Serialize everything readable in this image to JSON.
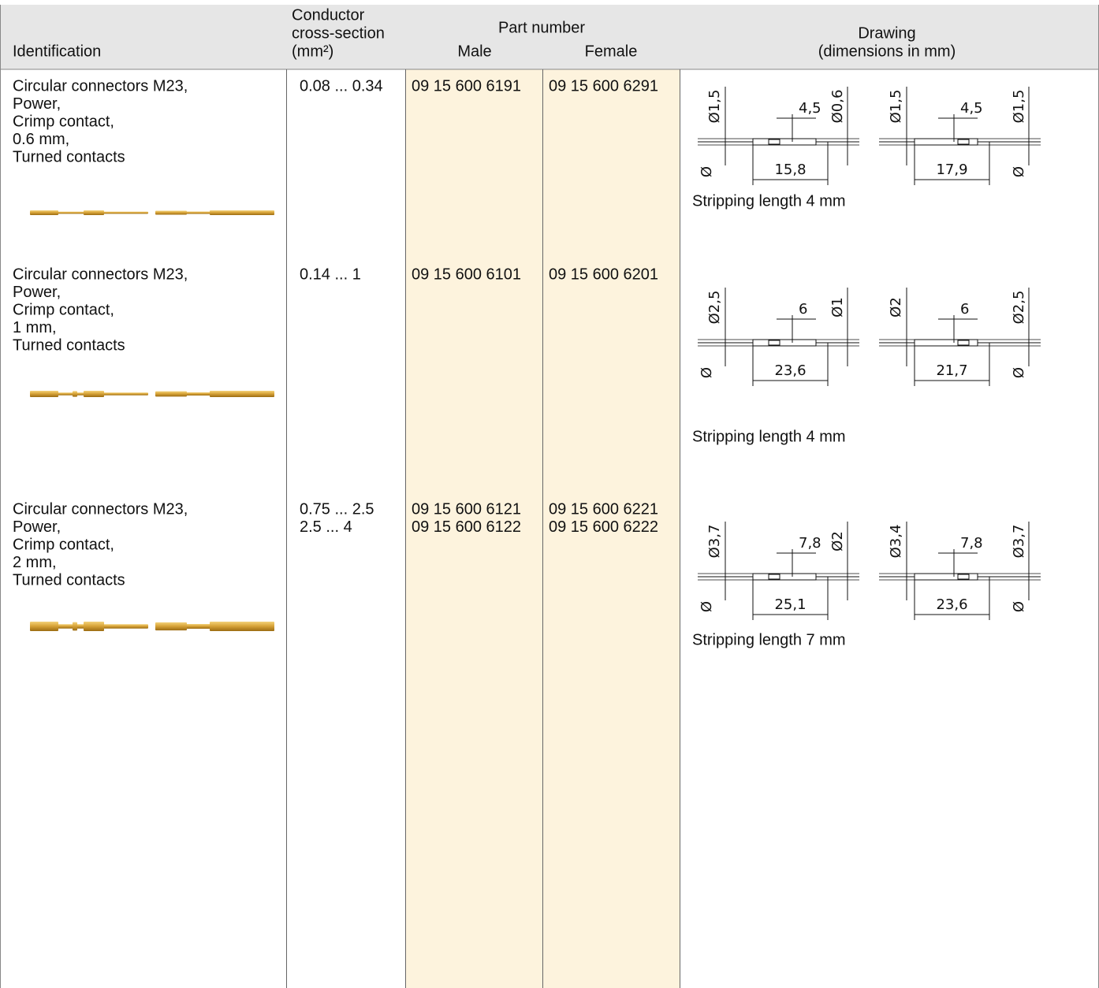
{
  "header": {
    "identification": "Identification",
    "conductor": [
      "Conductor",
      "cross-section",
      "(mm²)"
    ],
    "part_number": "Part number",
    "male": "Male",
    "female": "Female",
    "drawing": [
      "Drawing",
      "(dimensions in mm)"
    ]
  },
  "rows": [
    {
      "identification": [
        "Circular connectors M23,",
        "Power,",
        "Crimp contact,",
        "0.6 mm,",
        "Turned contacts"
      ],
      "cross_section": [
        "0.08 ... 0.34"
      ],
      "male": [
        "09 15 600 6191"
      ],
      "female": [
        "09 15 600 6291"
      ],
      "drawing": {
        "male": {
          "left_dia": "Ø1,5",
          "top_dim": "4,5",
          "right_dia": "Ø0,6",
          "bottom_dia": "Ø",
          "length": "15,8"
        },
        "female": {
          "left_dia": "Ø1,5",
          "top_dim": "4,5",
          "right_dia": "Ø1,5",
          "bottom_dia": "Ø",
          "length": "17,9"
        },
        "stripping": "Stripping length 4 mm"
      }
    },
    {
      "identification": [
        "Circular connectors M23,",
        "Power,",
        "Crimp contact,",
        "1 mm,",
        "Turned contacts"
      ],
      "cross_section": [
        "0.14 ... 1"
      ],
      "male": [
        "09 15 600 6101"
      ],
      "female": [
        "09 15 600 6201"
      ],
      "drawing": {
        "male": {
          "left_dia": "Ø2,5",
          "top_dim": "6",
          "right_dia": "Ø1",
          "bottom_dia": "Ø",
          "length": "23,6"
        },
        "female": {
          "left_dia": "Ø2",
          "top_dim": "6",
          "right_dia": "Ø2,5",
          "bottom_dia": "Ø",
          "length": "21,7"
        },
        "stripping": "Stripping length 4 mm"
      }
    },
    {
      "identification": [
        "Circular connectors M23,",
        "Power,",
        "Crimp contact,",
        "2 mm,",
        "Turned contacts"
      ],
      "cross_section": [
        "0.75 ... 2.5",
        "2.5 ... 4"
      ],
      "male": [
        "09 15 600 6121",
        "09 15 600 6122"
      ],
      "female": [
        "09 15 600 6221",
        "09 15 600 6222"
      ],
      "drawing": {
        "male": {
          "left_dia": "Ø3,7",
          "top_dim": "7,8",
          "right_dia": "Ø2",
          "bottom_dia": "Ø",
          "length": "25,1"
        },
        "female": {
          "left_dia": "Ø3,4",
          "top_dim": "7,8",
          "right_dia": "Ø3,7",
          "bottom_dia": "Ø",
          "length": "23,6"
        },
        "stripping": "Stripping length 7 mm"
      }
    }
  ]
}
